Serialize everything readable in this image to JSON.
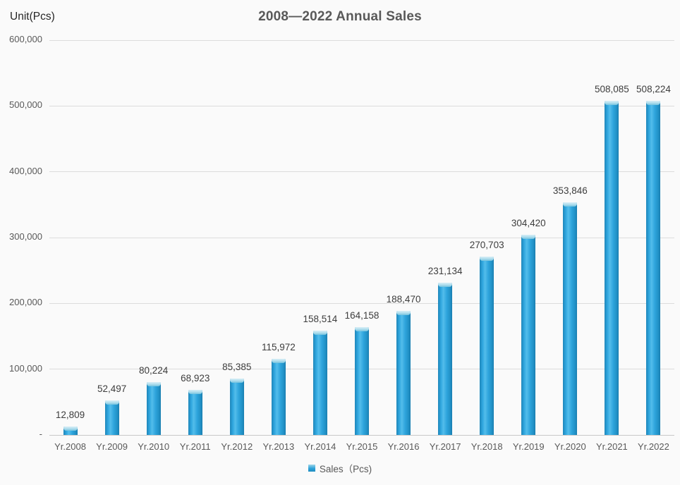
{
  "page": {
    "background_color": "#fafafa"
  },
  "chart_data": {
    "type": "bar",
    "title": "2008—2022 Annual Sales",
    "unit_label": "Unit(Pcs)",
    "xlabel": "",
    "ylabel": "Unit(Pcs)",
    "categories": [
      "Yr.2008",
      "Yr.2009",
      "Yr.2010",
      "Yr.2011",
      "Yr.2012",
      "Yr.2013",
      "Yr.2014",
      "Yr.2015",
      "Yr.2016",
      "Yr.2017",
      "Yr.2018",
      "Yr.2019",
      "Yr.2020",
      "Yr.2021",
      "Yr.2022"
    ],
    "values": [
      12809,
      52497,
      80224,
      68923,
      85385,
      115972,
      158514,
      164158,
      188470,
      231134,
      270703,
      304420,
      353846,
      508085,
      508224
    ],
    "data_labels": [
      "12,809",
      "52,497",
      "80,224",
      "68,923",
      "85,385",
      "115,972",
      "158,514",
      "164,158",
      "188,470",
      "231,134",
      "270,703",
      "304,420",
      "353,846",
      "508,085",
      "508,224"
    ],
    "series": [
      {
        "name": "Sales（Pcs)",
        "values": [
          12809,
          52497,
          80224,
          68923,
          85385,
          115972,
          158514,
          164158,
          188470,
          231134,
          270703,
          304420,
          353846,
          508085,
          508224
        ]
      }
    ],
    "ylim": [
      0,
      600000
    ],
    "y_tick_values": [
      600000,
      500000,
      400000,
      300000,
      200000,
      100000,
      0
    ],
    "y_tick_labels": [
      "600,000",
      "500,000",
      "400,000",
      "300,000",
      "200,000",
      "100,000",
      "-"
    ],
    "grid": true,
    "legend_position": "bottom",
    "bar_color": "#2ba2da",
    "bar_cap_color": "#abdcec",
    "gridline_color": "#dcdcdc"
  },
  "legend": {
    "label": "Sales（Pcs)"
  }
}
